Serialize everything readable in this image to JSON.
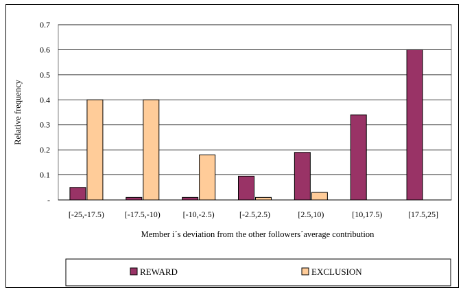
{
  "chart_data": {
    "type": "bar",
    "title": "",
    "xlabel": "Member i´s deviation from the other followers´average contribution",
    "ylabel": "Relative frequency",
    "categories": [
      "[-25,-17.5)",
      "[-17.5,-10)",
      "[-10,-2.5)",
      "[-2.5,2.5)",
      "[2.5,10)",
      "[10,17.5)",
      "[17.5,25]"
    ],
    "ylim": [
      0,
      0.7
    ],
    "yticks": [
      0,
      0.1,
      0.2,
      0.3,
      0.4,
      0.5,
      0.6,
      0.7
    ],
    "ytick_labels": [
      "-",
      "0.1",
      "0.2",
      "0.3",
      "0.4",
      "0.5",
      "0.6",
      "0.7"
    ],
    "grid": "horizontal",
    "legend_position": "bottom",
    "series": [
      {
        "name": "REWARD",
        "color": "#993366",
        "values": [
          0.05,
          0.01,
          0.01,
          0.095,
          0.19,
          0.34,
          0.6
        ]
      },
      {
        "name": "EXCLUSION",
        "color": "#FFCC99",
        "values": [
          0.4,
          0.4,
          0.18,
          0.01,
          0.03,
          0,
          0
        ]
      }
    ]
  }
}
